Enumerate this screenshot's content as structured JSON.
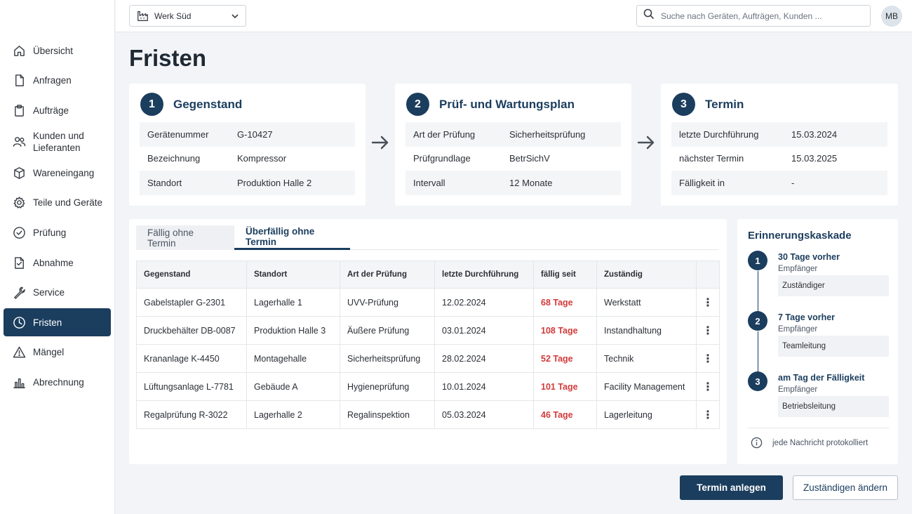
{
  "topbar": {
    "site": "Werk Süd",
    "search_placeholder": "Suche nach Geräten, Aufträgen, Kunden ...",
    "avatar_initials": "MB"
  },
  "sidebar": {
    "items": [
      {
        "label": "Übersicht",
        "icon": "home-icon"
      },
      {
        "label": "Anfragen",
        "icon": "document-icon"
      },
      {
        "label": "Aufträge",
        "icon": "clipboard-icon"
      },
      {
        "label": "Kunden und Lieferanten",
        "icon": "users-icon"
      },
      {
        "label": "Wareneingang",
        "icon": "box-icon"
      },
      {
        "label": "Teile und Geräte",
        "icon": "gear-icon"
      },
      {
        "label": "Prüfung",
        "icon": "check-circle-icon"
      },
      {
        "label": "Abnahme",
        "icon": "doc-check-icon"
      },
      {
        "label": "Service",
        "icon": "wrench-icon"
      },
      {
        "label": "Fristen",
        "icon": "clock-icon",
        "active": true
      },
      {
        "label": "Mängel",
        "icon": "warning-icon"
      },
      {
        "label": "Abrechnung",
        "icon": "bar-chart-icon"
      }
    ]
  },
  "page": {
    "title": "Fristen"
  },
  "steps": [
    {
      "num": "1",
      "title": "Gegenstand",
      "rows": [
        {
          "key": "Gerätenummer",
          "value": "G-10427"
        },
        {
          "key": "Bezeichnung",
          "value": "Kompressor"
        },
        {
          "key": "Standort",
          "value": "Produktion Halle 2"
        }
      ]
    },
    {
      "num": "2",
      "title": "Prüf- und Wartungsplan",
      "rows": [
        {
          "key": "Art der Prüfung",
          "value": "Sicherheitsprüfung"
        },
        {
          "key": "Prüfgrundlage",
          "value": "BetrSichV"
        },
        {
          "key": "Intervall",
          "value": "12 Monate"
        }
      ]
    },
    {
      "num": "3",
      "title": "Termin",
      "rows": [
        {
          "key": "letzte Durchführung",
          "value": "15.03.2024"
        },
        {
          "key": "nächster Termin",
          "value": "15.03.2025"
        },
        {
          "key": "Fälligkeit in",
          "value": "-"
        }
      ]
    }
  ],
  "tabs": [
    {
      "label": "Fällig ohne Termin",
      "active": false
    },
    {
      "label": "Überfällig ohne Termin",
      "active": true
    }
  ],
  "table": {
    "columns": [
      "Gegenstand",
      "Standort",
      "Art der Prüfung",
      "letzte Durchführung",
      "fällig seit",
      "Zuständig"
    ],
    "rows": [
      [
        "Gabelstapler G-2301",
        "Lagerhalle 1",
        "UVV-Prüfung",
        "12.02.2024",
        "68 Tage",
        "Werkstatt"
      ],
      [
        "Druckbehälter DB-0087",
        "Produktion Halle 3",
        "Äußere Prüfung",
        "03.01.2024",
        "108 Tage",
        "Instandhaltung"
      ],
      [
        "Krananlage K-4450",
        "Montagehalle",
        "Sicherheitsprüfung",
        "28.02.2024",
        "52 Tage",
        "Technik"
      ],
      [
        "Lüftungsanlage L-7781",
        "Gebäude A",
        "Hygieneprüfung",
        "10.01.2024",
        "101 Tage",
        "Facility Management"
      ],
      [
        "Regalprüfung R-3022",
        "Lagerhalle 2",
        "Regalinspektion",
        "05.03.2024",
        "46 Tage",
        "Lagerleitung"
      ]
    ],
    "row_menu": "⋮"
  },
  "reminder": {
    "title": "Erinnerungskaskade",
    "steps": [
      {
        "num": "1",
        "title": "30 Tage vorher",
        "sub": "Empfänger",
        "recipient": "Zuständiger"
      },
      {
        "num": "2",
        "title": "7 Tage vorher",
        "sub": "Empfänger",
        "recipient": "Teamleitung"
      },
      {
        "num": "3",
        "title": "am Tag der Fälligkeit",
        "sub": "Empfänger",
        "recipient": "Betriebsleitung"
      }
    ],
    "footer": "jede Nachricht protokolliert"
  },
  "actions": {
    "primary": "Termin anlegen",
    "secondary": "Zuständigen ändern"
  },
  "colors": {
    "accent": "#1b3d5e",
    "overdue": "#d33a3a"
  }
}
